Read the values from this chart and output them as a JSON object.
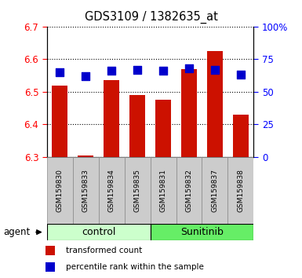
{
  "title": "GDS3109 / 1382635_at",
  "samples": [
    "GSM159830",
    "GSM159833",
    "GSM159834",
    "GSM159835",
    "GSM159831",
    "GSM159832",
    "GSM159837",
    "GSM159838"
  ],
  "red_values": [
    6.52,
    6.305,
    6.535,
    6.49,
    6.475,
    6.57,
    6.625,
    6.43
  ],
  "blue_values": [
    65,
    62,
    66,
    67,
    66,
    68,
    67,
    63
  ],
  "ymin": 6.3,
  "ymax": 6.7,
  "yticks": [
    6.3,
    6.4,
    6.5,
    6.6,
    6.7
  ],
  "right_yticks": [
    0,
    25,
    50,
    75,
    100
  ],
  "right_yticklabels": [
    "0",
    "25",
    "50",
    "75",
    "100%"
  ],
  "groups": [
    {
      "label": "control",
      "start": 0,
      "end": 4,
      "color": "#ccffcc"
    },
    {
      "label": "Sunitinib",
      "start": 4,
      "end": 8,
      "color": "#66ee66"
    }
  ],
  "bar_color": "#cc1100",
  "dot_color": "#0000cc",
  "agent_label": "agent",
  "legend_items": [
    {
      "color": "#cc1100",
      "label": "transformed count"
    },
    {
      "color": "#0000cc",
      "label": "percentile rank within the sample"
    }
  ],
  "bar_width": 0.6,
  "dot_size": 45,
  "tick_label_bg": "#cccccc",
  "tick_label_edgecolor": "#999999"
}
